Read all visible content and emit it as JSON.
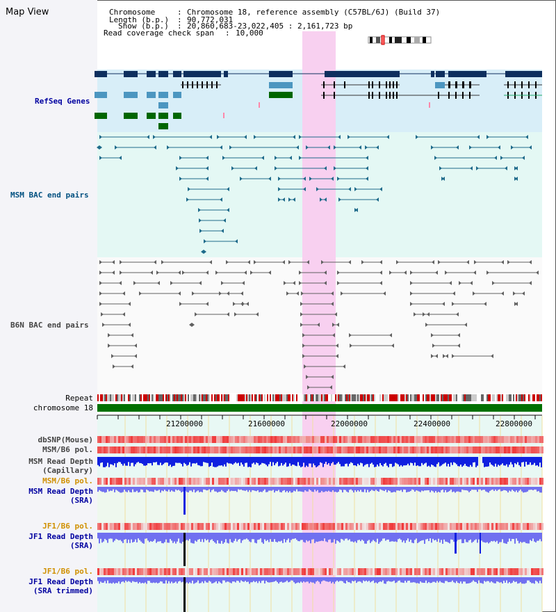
{
  "title": "Map View",
  "header": {
    "chromosome_label": "Chromosome",
    "chromosome_value": "Chromosome 18, reference assembly (C57BL/6J) (Build 37)",
    "length_label": "Length (b.p.)",
    "length_value": "90,772,031",
    "show_label": "Show (b.p.)",
    "show_value": "20,860,683-23,022,405 : 2,161,723 bp",
    "coverage_label": "Read coverage check span",
    "coverage_value": "10,000"
  },
  "tracks": {
    "refseq": "RefSeq Genes",
    "msm_bac": "MSM BAC end pairs",
    "b6n_bac": "B6N BAC end pairs",
    "repeat": "Repeat",
    "chrom": "chromosome 18",
    "dbsnp": "dbSNP(Mouse)",
    "msm_b6_pol_1": "MSM/B6 pol.",
    "msm_depth_cap_1": "MSM Read Depth",
    "msm_depth_cap_2": "(Capillary)",
    "msm_b6_pol_2": "MSM/B6 pol.",
    "msm_depth_sra_1": "MSM Read Depth",
    "msm_depth_sra_2": "(SRA)",
    "jf1_pol_1": "JF1/B6 pol.",
    "jf1_depth_1": "JF1 Read Depth",
    "jf1_depth_2": "(SRA)",
    "jf1_pol_2": "JF1/B6 pol.",
    "jf1_trim_1": "JF1 Read Depth",
    "jf1_trim_2": "(SRA trimmed)"
  },
  "axis": {
    "ticks": [
      "21200000",
      "21600000",
      "22000000",
      "22400000",
      "22800000"
    ]
  },
  "colors": {
    "refseq_bg": "#d8eef8",
    "highlight": "#f8d0f0",
    "gene_dark": "#0e2f5e",
    "gene_mid": "#4c96c0",
    "gene_green": "#006600",
    "msm_bac": "#1e6a8a",
    "b6n_bac": "#606060",
    "depth_blue": "#1020e0",
    "depth_light": "#7070f0",
    "pol_red": "#e04040",
    "label_blue": "#0000a0",
    "label_orange": "#d09000",
    "label_teal": "#005080"
  }
}
